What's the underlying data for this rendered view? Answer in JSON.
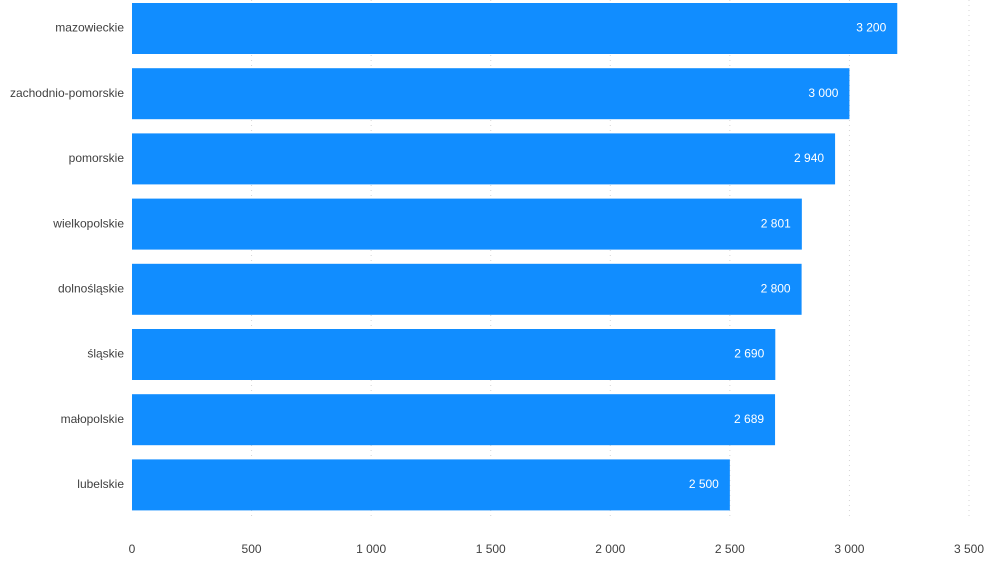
{
  "colors": {
    "bar": "#118dff",
    "grid": "#d6d6d6",
    "label_text": "#404040",
    "value_text": "#ffffff"
  },
  "chart_data": {
    "type": "bar",
    "orientation": "horizontal",
    "title": "",
    "xlabel": "",
    "ylabel": "",
    "categories": [
      "mazowieckie",
      "zachodnio-pomorskie",
      "pomorskie",
      "wielkopolskie",
      "dolnośląskie",
      "śląskie",
      "małopolskie",
      "lubelskie"
    ],
    "values": [
      3200,
      3000,
      2940,
      2801,
      2800,
      2690,
      2689,
      2500
    ],
    "value_labels": [
      "3 200",
      "3 000",
      "2 940",
      "2 801",
      "2 800",
      "2 690",
      "2 689",
      "2 500"
    ],
    "xlim": [
      0,
      3500
    ],
    "xticks": [
      0,
      500,
      1000,
      1500,
      2000,
      2500,
      3000,
      3500
    ],
    "xtick_labels": [
      "0",
      "500",
      "1 000",
      "1 500",
      "2 000",
      "2 500",
      "3 000",
      "3 500"
    ],
    "grid": true,
    "legend": "none"
  }
}
